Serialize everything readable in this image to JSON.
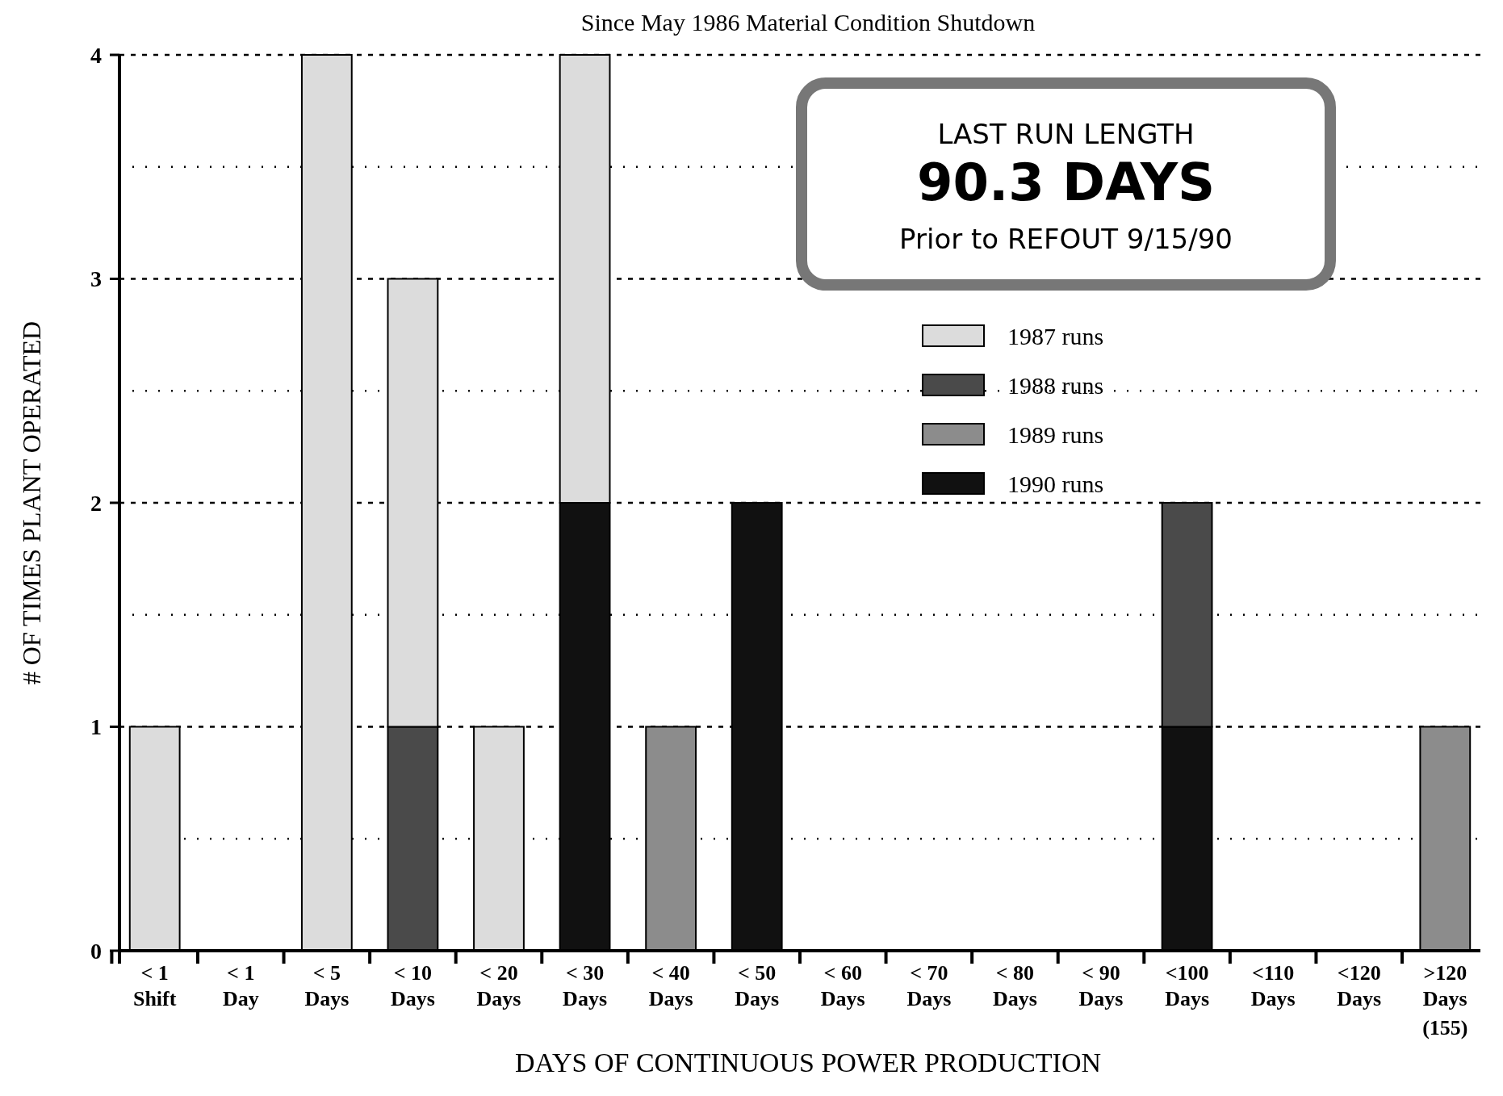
{
  "chart_data": {
    "type": "bar",
    "stacked": true,
    "title": "Since May 1986 Material Condition Shutdown",
    "xlabel": "DAYS OF CONTINUOUS POWER PRODUCTION",
    "ylabel": "# OF TIMES PLANT OPERATED",
    "categories": [
      "< 1\nShift",
      "< 1\nDay",
      "< 5\nDays",
      "< 10\nDays",
      "< 20\nDays",
      "< 30\nDays",
      "< 40\nDays",
      "< 50\nDays",
      "< 60\nDays",
      "< 70\nDays",
      "< 80\nDays",
      "< 90\nDays",
      "<100\nDays",
      "<110\nDays",
      "<120\nDays",
      ">120\nDays"
    ],
    "series": [
      {
        "name": "1990 runs",
        "color": "#111111",
        "values": [
          null,
          null,
          null,
          null,
          null,
          2,
          null,
          2,
          null,
          null,
          null,
          null,
          1,
          null,
          null,
          null
        ]
      },
      {
        "name": "1989 runs",
        "color": "#8c8c8c",
        "values": [
          null,
          null,
          null,
          null,
          null,
          null,
          1,
          null,
          null,
          null,
          null,
          null,
          null,
          null,
          null,
          1
        ]
      },
      {
        "name": "1988 runs",
        "color": "#4a4a4a",
        "values": [
          null,
          null,
          null,
          1,
          null,
          null,
          null,
          null,
          null,
          null,
          null,
          null,
          1,
          null,
          null,
          null
        ]
      },
      {
        "name": "1987 runs",
        "color": "#dcdcdc",
        "values": [
          1,
          null,
          4,
          2,
          1,
          2,
          null,
          null,
          null,
          null,
          null,
          null,
          null,
          null,
          null,
          null
        ]
      }
    ],
    "ylim": [
      0,
      4
    ],
    "yticks": [
      0,
      {
        "value": 0.5,
        "label": null
      },
      1,
      {
        "value": 1.5,
        "label": null
      },
      2,
      {
        "value": 2.5,
        "label": null
      },
      3,
      {
        "value": 3.5,
        "label": null
      },
      4
    ],
    "grid": "y",
    "legend": "top right",
    "annotations": [
      "LAST RUN LENGTH",
      "90.3 DAYS",
      "Prior to REFOUT 9/15/90",
      "(155)"
    ]
  }
}
